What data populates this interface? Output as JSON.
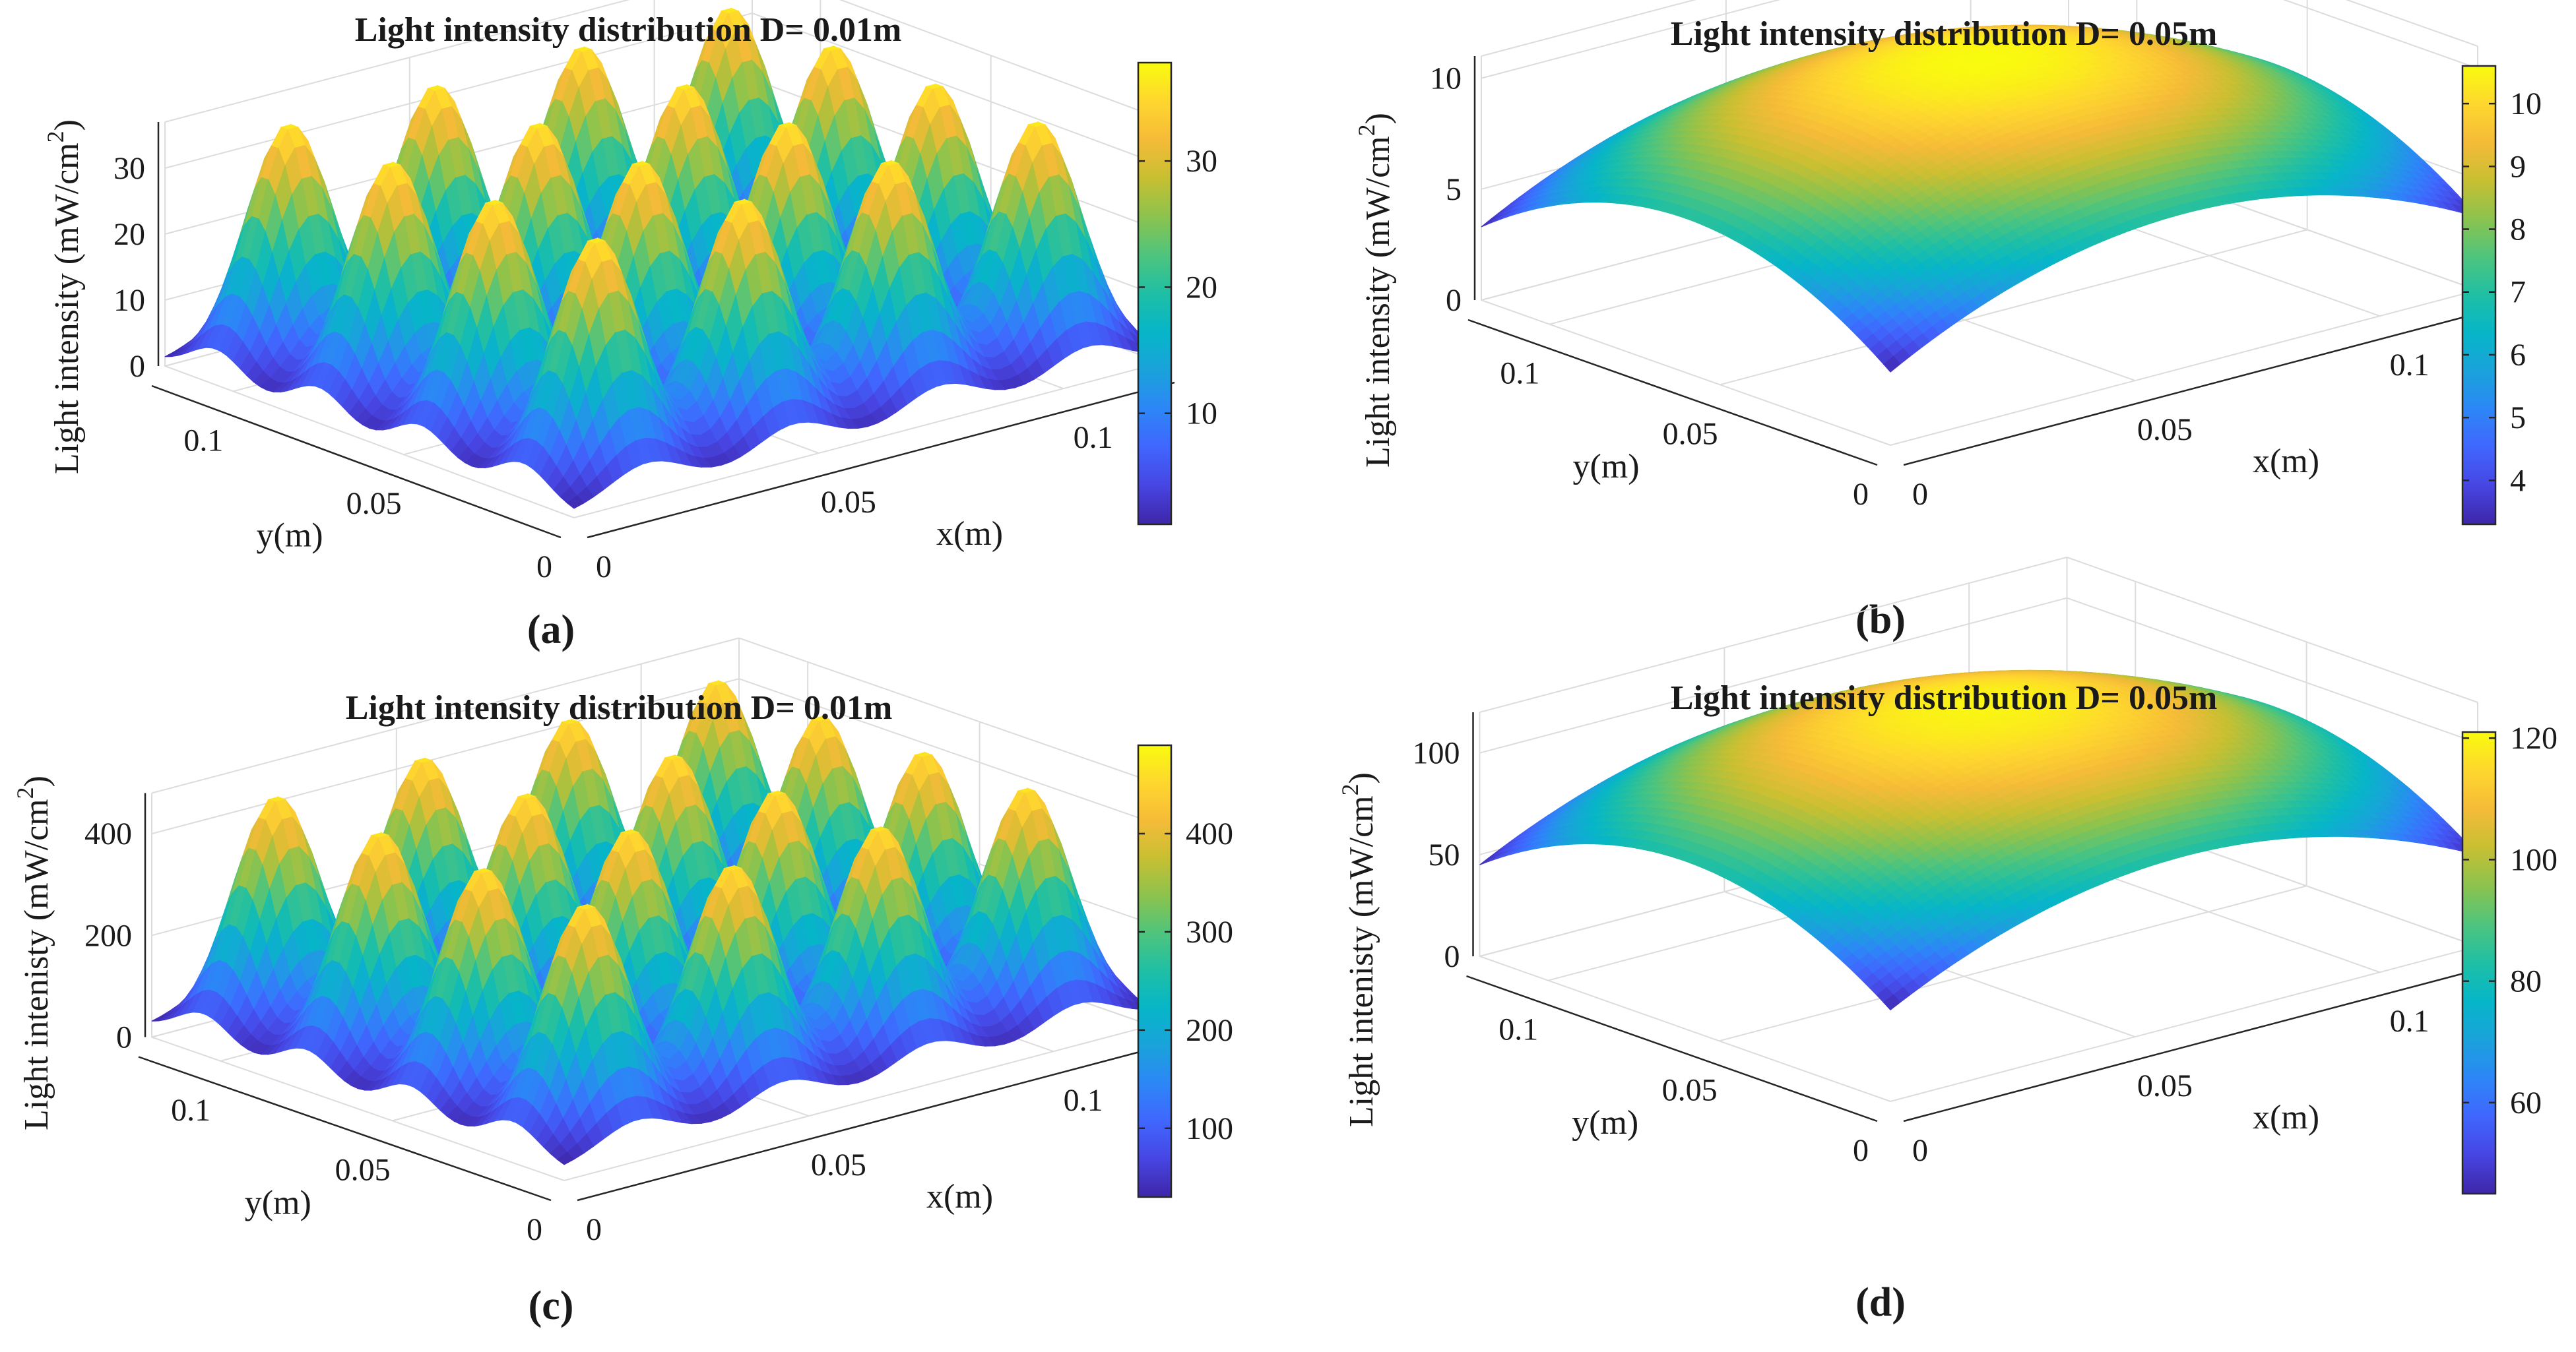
{
  "figure": {
    "colormap": [
      "#3e26a8",
      "#4745e2",
      "#4066fe",
      "#2d86f7",
      "#1aa2db",
      "#06b6c8",
      "#1fbfa5",
      "#4ec47d",
      "#8cc34e",
      "#c8bf32",
      "#f5bb38",
      "#fed72e",
      "#f9fb0e"
    ],
    "surface_shading": "interp",
    "view": "3D perspective, x toward right, y toward left, z vertical"
  },
  "chart_data": [
    {
      "type": "surface",
      "panel_label": "(a)",
      "title": "Light intensity distribution  D= 0.01m",
      "xlabel": "x(m)",
      "ylabel": "y(m)",
      "zlabel": "Light intensity (mW/cm²)",
      "zlabel_base": "Light intensity (mW/cm",
      "zlabel_sup": "2",
      "zlabel_end": ")",
      "x_ticks": [
        "0",
        "0.05",
        "0.1"
      ],
      "y_ticks": [
        "0",
        "0.05",
        "0.1"
      ],
      "z_ticks": [
        "0",
        "10",
        "20",
        "30"
      ],
      "z_tick_values": [
        0,
        10,
        20,
        30
      ],
      "zlim": [
        0,
        37
      ],
      "xlim": [
        0,
        0.12
      ],
      "ylim": [
        0,
        0.12
      ],
      "colorbar_ticks": [
        "10",
        "20",
        "30"
      ],
      "colorbar_tick_values": [
        10,
        20,
        30
      ],
      "colorbar_range": [
        1.2,
        37.8
      ],
      "field": {
        "model": "4x4 array of Gaussian light peaks",
        "peak_centers": [
          0.015,
          0.045,
          0.075,
          0.105
        ],
        "peak_max": 37,
        "base": 0.5,
        "peak_sigma": 0.0075
      }
    },
    {
      "type": "surface",
      "panel_label": "(b)",
      "title": "Light intensity distribution  D= 0.05m",
      "xlabel": "x(m)",
      "ylabel": "y(m)",
      "zlabel": "Light intensity (mW/cm²)",
      "zlabel_base": "Light intensity (mW/cm",
      "zlabel_sup": "2",
      "zlabel_end": ")",
      "x_ticks": [
        "0",
        "0.05",
        "0.1"
      ],
      "y_ticks": [
        "0",
        "0.05",
        "0.1"
      ],
      "z_ticks": [
        "0",
        "5",
        "10"
      ],
      "z_tick_values": [
        0,
        5,
        10
      ],
      "zlim": [
        0,
        11
      ],
      "xlim": [
        0,
        0.12
      ],
      "ylim": [
        0,
        0.12
      ],
      "colorbar_ticks": [
        "4",
        "5",
        "6",
        "7",
        "8",
        "9",
        "10"
      ],
      "colorbar_tick_values": [
        4,
        5,
        6,
        7,
        8,
        9,
        10
      ],
      "colorbar_range": [
        3.3,
        10.6
      ],
      "field": {
        "model": "smooth dome centred on the plane",
        "center_value": 10.6,
        "corner_value": 3.3
      }
    },
    {
      "type": "surface",
      "panel_label": "(c)",
      "title": "Light intensity distribution  D= 0.01m",
      "xlabel": "x(m)",
      "ylabel": "y(m)",
      "zlabel": "Light intenisty (mW/cm²)",
      "zlabel_base": "Light intenisty (mW/cm",
      "zlabel_sup": "2",
      "zlabel_end": ")",
      "x_ticks": [
        "0",
        "0.05",
        "0.1"
      ],
      "y_ticks": [
        "0",
        "0.05",
        "0.1"
      ],
      "z_ticks": [
        "0",
        "200",
        "400"
      ],
      "z_tick_values": [
        0,
        200,
        400
      ],
      "zlim": [
        0,
        480
      ],
      "xlim": [
        0,
        0.12
      ],
      "ylim": [
        0,
        0.12
      ],
      "colorbar_ticks": [
        "100",
        "200",
        "300",
        "400"
      ],
      "colorbar_tick_values": [
        100,
        200,
        300,
        400
      ],
      "colorbar_range": [
        30,
        490
      ],
      "field": {
        "model": "4x4 array of Gaussian light peaks",
        "peak_centers": [
          0.015,
          0.045,
          0.075,
          0.105
        ],
        "peak_max": 475,
        "base": 20,
        "peak_sigma": 0.0075
      }
    },
    {
      "type": "surface",
      "panel_label": "(d)",
      "title": "Light intensity distribution  D= 0.05m",
      "xlabel": "x(m)",
      "ylabel": "y(m)",
      "zlabel": "Light intenisty (mW/cm²)",
      "zlabel_base": "Light intenisty (mW/cm",
      "zlabel_sup": "2",
      "zlabel_end": ")",
      "x_ticks": [
        "0",
        "0.05",
        "0.1"
      ],
      "y_ticks": [
        "0",
        "0.05",
        "0.1"
      ],
      "z_ticks": [
        "0",
        "50",
        "100"
      ],
      "z_tick_values": [
        0,
        50,
        100
      ],
      "zlim": [
        0,
        120
      ],
      "xlim": [
        0,
        0.12
      ],
      "ylim": [
        0,
        0.12
      ],
      "colorbar_ticks": [
        "60",
        "80",
        "100",
        "120"
      ],
      "colorbar_tick_values": [
        60,
        80,
        100,
        120
      ],
      "colorbar_range": [
        45,
        121
      ],
      "field": {
        "model": "smooth dome centred on the plane",
        "center_value": 120,
        "corner_value": 45
      }
    }
  ]
}
